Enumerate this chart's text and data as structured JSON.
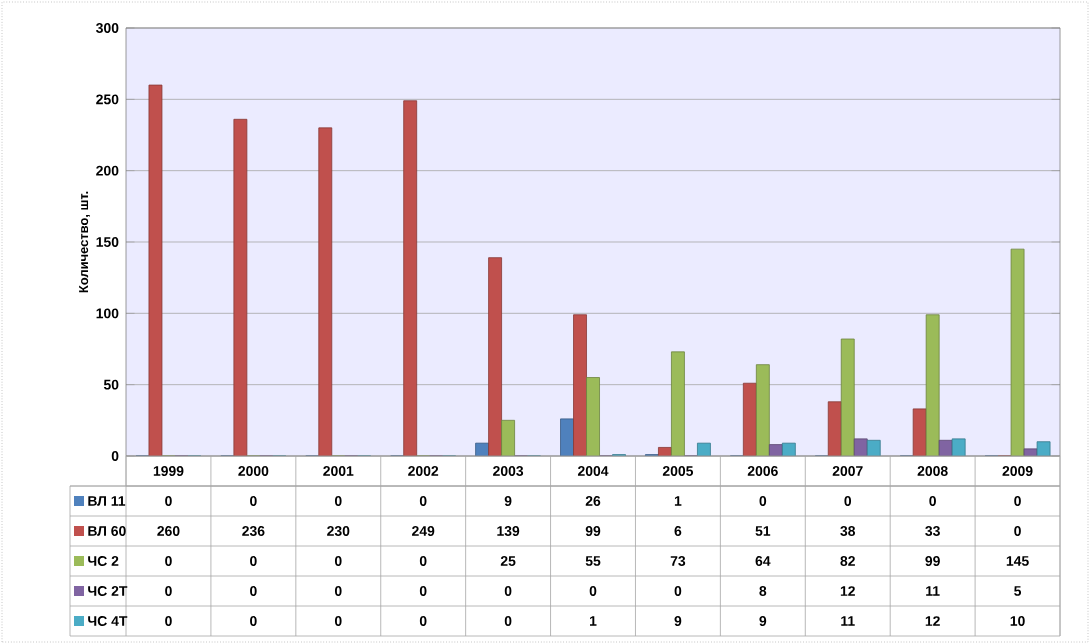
{
  "chart_data": {
    "type": "bar",
    "ylabel": "Количество, шт.",
    "categories": [
      "1999",
      "2000",
      "2001",
      "2002",
      "2003",
      "2004",
      "2005",
      "2006",
      "2007",
      "2008",
      "2009"
    ],
    "series": [
      {
        "name": "ВЛ 11",
        "color": "#4f81bd",
        "values": [
          0,
          0,
          0,
          0,
          9,
          26,
          1,
          0,
          0,
          0,
          0
        ]
      },
      {
        "name": "ВЛ 60",
        "color": "#c0504d",
        "values": [
          260,
          236,
          230,
          249,
          139,
          99,
          6,
          51,
          38,
          33,
          0
        ]
      },
      {
        "name": "ЧС 2",
        "color": "#9bbb59",
        "values": [
          0,
          0,
          0,
          0,
          25,
          55,
          73,
          64,
          82,
          99,
          145
        ]
      },
      {
        "name": "ЧС 2Т",
        "color": "#8064a2",
        "values": [
          0,
          0,
          0,
          0,
          0,
          0,
          0,
          8,
          12,
          11,
          5
        ]
      },
      {
        "name": "ЧС 4Т",
        "color": "#4bacc6",
        "values": [
          0,
          0,
          0,
          0,
          0,
          1,
          9,
          9,
          11,
          12,
          10
        ]
      }
    ],
    "ylim": [
      0,
      300
    ],
    "yticks": [
      0,
      50,
      100,
      150,
      200,
      250,
      300
    ],
    "grid": "y",
    "legend": "bottom",
    "data_labels": true
  }
}
